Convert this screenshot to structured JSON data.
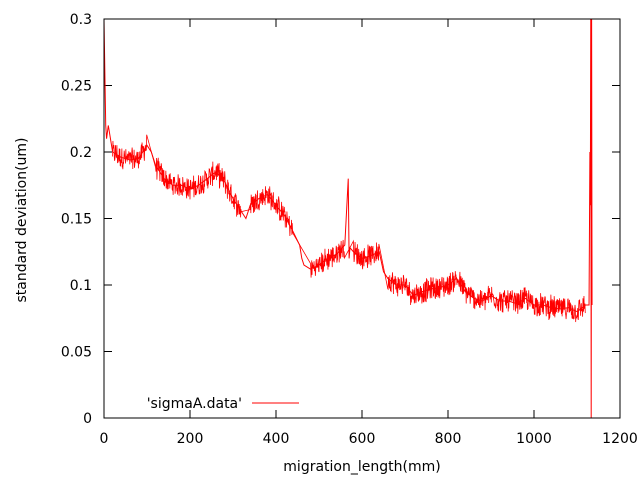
{
  "chart_data": {
    "type": "line",
    "title": "",
    "xlabel": "migration_length(mm)",
    "ylabel": "standard deviation(um)",
    "xlim": [
      0,
      1200
    ],
    "ylim": [
      0,
      0.3
    ],
    "xticks": [
      0,
      200,
      400,
      600,
      800,
      1000,
      1200
    ],
    "yticks": [
      0,
      0.05,
      0.1,
      0.15,
      0.2,
      0.25,
      0.3
    ],
    "xtick_labels": [
      "0",
      "200",
      "400",
      "600",
      "800",
      "1000",
      "1200"
    ],
    "ytick_labels": [
      "0",
      "0.05",
      "0.1",
      "0.15",
      "0.2",
      "0.25",
      "0.3"
    ],
    "grid": false,
    "legend_position": "bottom-left",
    "series": [
      {
        "name": "'sigmaA.data'",
        "color": "#ff0000",
        "x": [
          0,
          2,
          4,
          6,
          10,
          20,
          40,
          60,
          80,
          100,
          110,
          120,
          140,
          160,
          180,
          200,
          220,
          240,
          260,
          280,
          300,
          320,
          330,
          340,
          360,
          380,
          400,
          420,
          440,
          455,
          460,
          465,
          480,
          500,
          520,
          540,
          560,
          568,
          570,
          572,
          580,
          600,
          620,
          640,
          650,
          660,
          680,
          700,
          720,
          740,
          760,
          780,
          800,
          820,
          840,
          860,
          880,
          900,
          920,
          940,
          960,
          980,
          1000,
          1020,
          1040,
          1060,
          1080,
          1100,
          1120,
          1128,
          1130,
          1131,
          1132,
          1133,
          1134,
          1135
        ],
        "y": [
          0.3,
          0.26,
          0.22,
          0.21,
          0.22,
          0.2,
          0.196,
          0.194,
          0.195,
          0.205,
          0.2,
          0.19,
          0.18,
          0.175,
          0.175,
          0.172,
          0.175,
          0.18,
          0.185,
          0.178,
          0.165,
          0.155,
          0.15,
          0.16,
          0.165,
          0.168,
          0.16,
          0.152,
          0.14,
          0.13,
          0.12,
          0.115,
          0.112,
          0.115,
          0.12,
          0.123,
          0.13,
          0.18,
          0.12,
          0.128,
          0.125,
          0.12,
          0.122,
          0.125,
          0.11,
          0.105,
          0.1,
          0.1,
          0.092,
          0.095,
          0.097,
          0.098,
          0.1,
          0.105,
          0.095,
          0.09,
          0.088,
          0.092,
          0.088,
          0.088,
          0.086,
          0.09,
          0.085,
          0.085,
          0.083,
          0.082,
          0.083,
          0.08,
          0.085,
          0.085,
          0.2,
          0.16,
          0.3,
          0.0,
          0.3,
          0.085
        ]
      }
    ]
  }
}
